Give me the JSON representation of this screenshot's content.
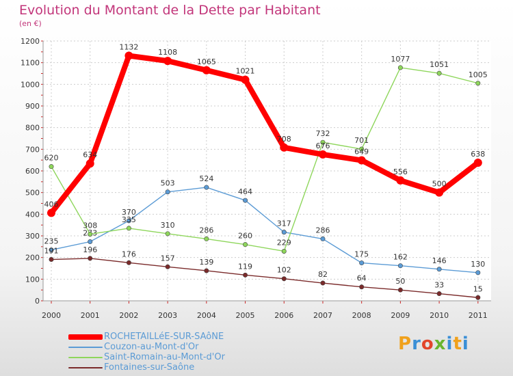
{
  "title": "Evolution du Montant de la Dette par Habitant",
  "subtitle": "(en €)",
  "logo": {
    "letters": [
      "P",
      "r",
      "o",
      "x",
      "i",
      "t",
      "i"
    ],
    "colors": [
      "#f0a11c",
      "#3a8fd6",
      "#e2452b",
      "#69b52e",
      "#3a8fd6",
      "#f0a11c",
      "#3a8fd6"
    ]
  },
  "chart_data": {
    "type": "line",
    "x": [
      "2000",
      "2001",
      "2002",
      "2003",
      "2004",
      "2005",
      "2006",
      "2007",
      "2008",
      "2009",
      "2010",
      "2011"
    ],
    "ylim": [
      0,
      1200
    ],
    "yticks": [
      0,
      100,
      200,
      300,
      400,
      500,
      600,
      700,
      800,
      900,
      1000,
      1100,
      1200
    ],
    "grid": true,
    "legend_position": "bottom-left",
    "series": [
      {
        "name": "ROCHETAILLéE-SUR-SAôNE",
        "color": "#ff0000",
        "emphasis": true,
        "values": [
          406,
          634,
          1132,
          1108,
          1065,
          1021,
          708,
          676,
          649,
          556,
          500,
          638
        ]
      },
      {
        "name": "Couzon-au-Mont-d'Or",
        "color": "#5b9bd5",
        "emphasis": false,
        "values": [
          235,
          273,
          370,
          503,
          524,
          464,
          317,
          286,
          175,
          162,
          146,
          130
        ]
      },
      {
        "name": "Saint-Romain-au-Mont-d'Or",
        "color": "#8ed65b",
        "emphasis": false,
        "values": [
          620,
          308,
          335,
          310,
          286,
          260,
          229,
          732,
          701,
          1077,
          1051,
          1005
        ]
      },
      {
        "name": "Fontaines-sur-Saône",
        "color": "#7a2a2a",
        "emphasis": false,
        "values": [
          191,
          196,
          176,
          157,
          139,
          119,
          102,
          82,
          64,
          50,
          33,
          15
        ]
      }
    ]
  }
}
